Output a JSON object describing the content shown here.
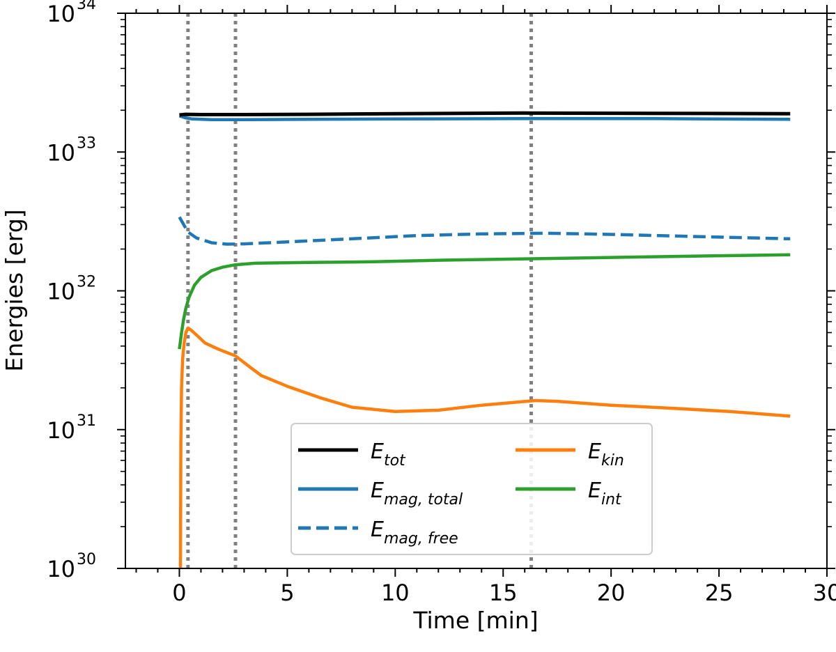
{
  "chart_data": {
    "type": "line",
    "xlabel": "Time [min]",
    "ylabel": "Energies [erg]",
    "xlim": [
      -2.5,
      30
    ],
    "ylim": [
      1e+30,
      1e+34
    ],
    "yscale": "log",
    "x_ticks": [
      0,
      5,
      10,
      15,
      20,
      25,
      30
    ],
    "x_tick_labels": [
      "0",
      "5",
      "10",
      "15",
      "20",
      "25",
      "30"
    ],
    "y_ticks": [
      {
        "base": "10",
        "exp": "30",
        "value": 1e+30
      },
      {
        "base": "10",
        "exp": "31",
        "value": 1e+31
      },
      {
        "base": "10",
        "exp": "32",
        "value": 1e+32
      },
      {
        "base": "10",
        "exp": "33",
        "value": 1e+33
      },
      {
        "base": "10",
        "exp": "34",
        "value": 1e+34
      }
    ],
    "grid": false,
    "vertical_markers": [
      0.4,
      2.6,
      16.3
    ],
    "legend_position": "bottom-center",
    "series": [
      {
        "name": "E_tot",
        "label_main": "E",
        "label_sub": "tot",
        "color": "#000000",
        "style": "solid",
        "x": [
          0,
          0.3,
          1,
          3,
          6,
          10,
          16,
          22,
          28.3
        ],
        "y": [
          1.85e+33,
          1.87e+33,
          1.86e+33,
          1.86e+33,
          1.87e+33,
          1.89e+33,
          1.91e+33,
          1.9e+33,
          1.89e+33
        ]
      },
      {
        "name": "E_mag,total",
        "label_main": "E",
        "label_sub": "mag, total",
        "color": "#1f77b4",
        "style": "solid",
        "x": [
          0,
          0.3,
          0.6,
          1.5,
          3,
          6,
          10,
          16,
          22,
          28.3
        ],
        "y": [
          1.82e+33,
          1.76e+33,
          1.73e+33,
          1.71e+33,
          1.71e+33,
          1.72e+33,
          1.73e+33,
          1.74e+33,
          1.74e+33,
          1.72e+33
        ]
      },
      {
        "name": "E_mag,free",
        "label_main": "E",
        "label_sub": "mag, free",
        "color": "#1f77b4",
        "style": "dashed",
        "x": [
          0,
          0.15,
          0.4,
          0.8,
          1.5,
          2.2,
          3,
          5,
          8,
          11,
          14,
          17,
          20,
          24,
          28.3
        ],
        "y": [
          3.4e+32,
          3.1e+32,
          2.65e+32,
          2.4e+32,
          2.22e+32,
          2.17e+32,
          2.18e+32,
          2.25e+32,
          2.37e+32,
          2.5e+32,
          2.57e+32,
          2.6e+32,
          2.55e+32,
          2.46e+32,
          2.37e+32
        ]
      },
      {
        "name": "E_kin",
        "label_main": "E",
        "label_sub": "kin",
        "color": "#ff7f0e",
        "style": "solid",
        "x": [
          0.05,
          0.07,
          0.1,
          0.15,
          0.22,
          0.3,
          0.4,
          0.55,
          0.8,
          1.2,
          1.8,
          2.6,
          3.3,
          3.8,
          5,
          6.5,
          8,
          10,
          12,
          14,
          16.5,
          17.5,
          20,
          23,
          25.5,
          28.3
        ],
        "y": [
          1e+30,
          8e+30,
          2e+31,
          3.2e+31,
          4.2e+31,
          5e+31,
          5.4e+31,
          5.2e+31,
          4.8e+31,
          4.2e+31,
          3.8e+31,
          3.4e+31,
          2.8e+31,
          2.45e+31,
          2.05e+31,
          1.7e+31,
          1.45e+31,
          1.35e+31,
          1.38e+31,
          1.5e+31,
          1.62e+31,
          1.6e+31,
          1.5e+31,
          1.42e+31,
          1.35e+31,
          1.25e+31
        ]
      },
      {
        "name": "E_int",
        "label_main": "E",
        "label_sub": "int",
        "color": "#2ca02c",
        "style": "solid",
        "x": [
          0,
          0.1,
          0.2,
          0.3,
          0.45,
          0.7,
          1.0,
          1.5,
          2.0,
          2.6,
          3.5,
          6,
          9,
          12,
          16,
          20,
          24,
          28.3
        ],
        "y": [
          3.8e+31,
          5e+31,
          6.3e+31,
          7.5e+31,
          9e+31,
          1.1e+32,
          1.25e+32,
          1.4e+32,
          1.48e+32,
          1.54e+32,
          1.58e+32,
          1.6e+32,
          1.62e+32,
          1.66e+32,
          1.7e+32,
          1.74e+32,
          1.78e+32,
          1.82e+32
        ]
      }
    ]
  }
}
